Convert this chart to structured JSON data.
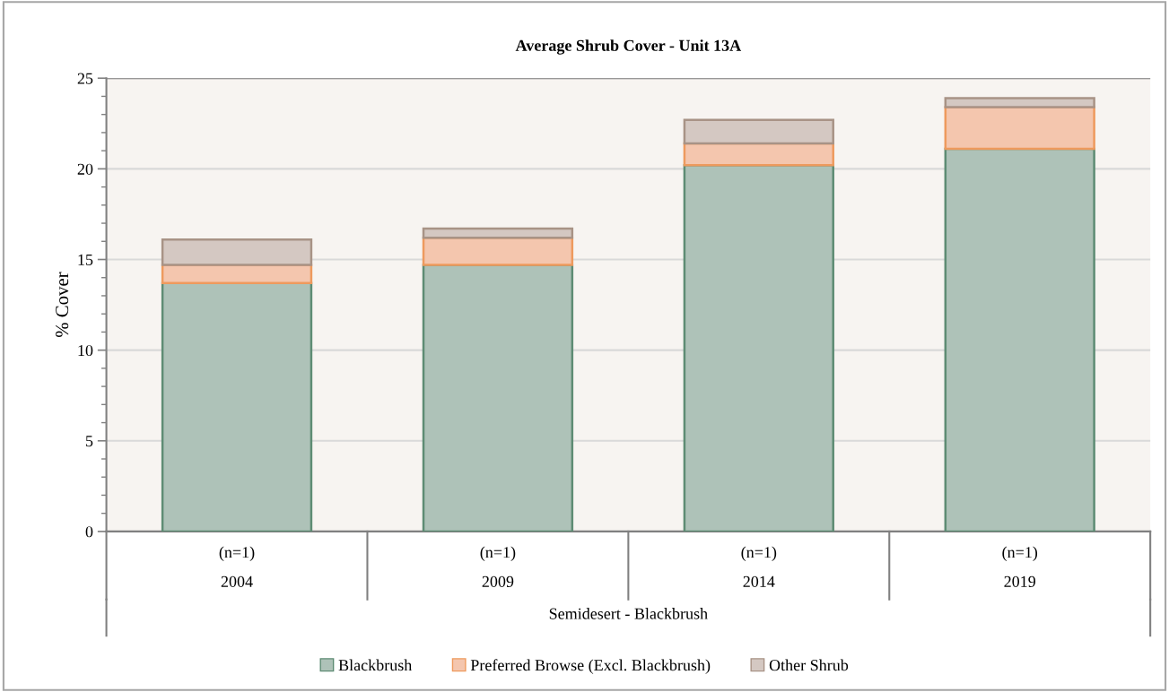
{
  "chart_data": {
    "type": "bar",
    "title": "Average Shrub Cover - Unit 13A",
    "ylabel": "% Cover",
    "xlabel": "Semidesert - Blackbrush",
    "categories": [
      "(n=1)\n2004",
      "(n=1)\n2009",
      "(n=1)\n2014",
      "(n=1)\n2019"
    ],
    "series": [
      {
        "name": "Blackbrush",
        "color": "#aec2b8",
        "values": [
          13.7,
          14.7,
          20.2,
          21.1
        ]
      },
      {
        "name": "Preferred Browse (Excl. Blackbrush)",
        "color": "#f4c6ae",
        "values": [
          1.0,
          1.5,
          1.2,
          2.3
        ]
      },
      {
        "name": "Other Shrub",
        "color": "#d4c8c2",
        "values": [
          1.4,
          0.5,
          1.3,
          0.5
        ]
      }
    ],
    "stacked": true,
    "ylim": [
      0,
      25
    ],
    "yticks": [
      0,
      5,
      10,
      15,
      20,
      25
    ],
    "grid": "y",
    "legend": "bottom"
  }
}
